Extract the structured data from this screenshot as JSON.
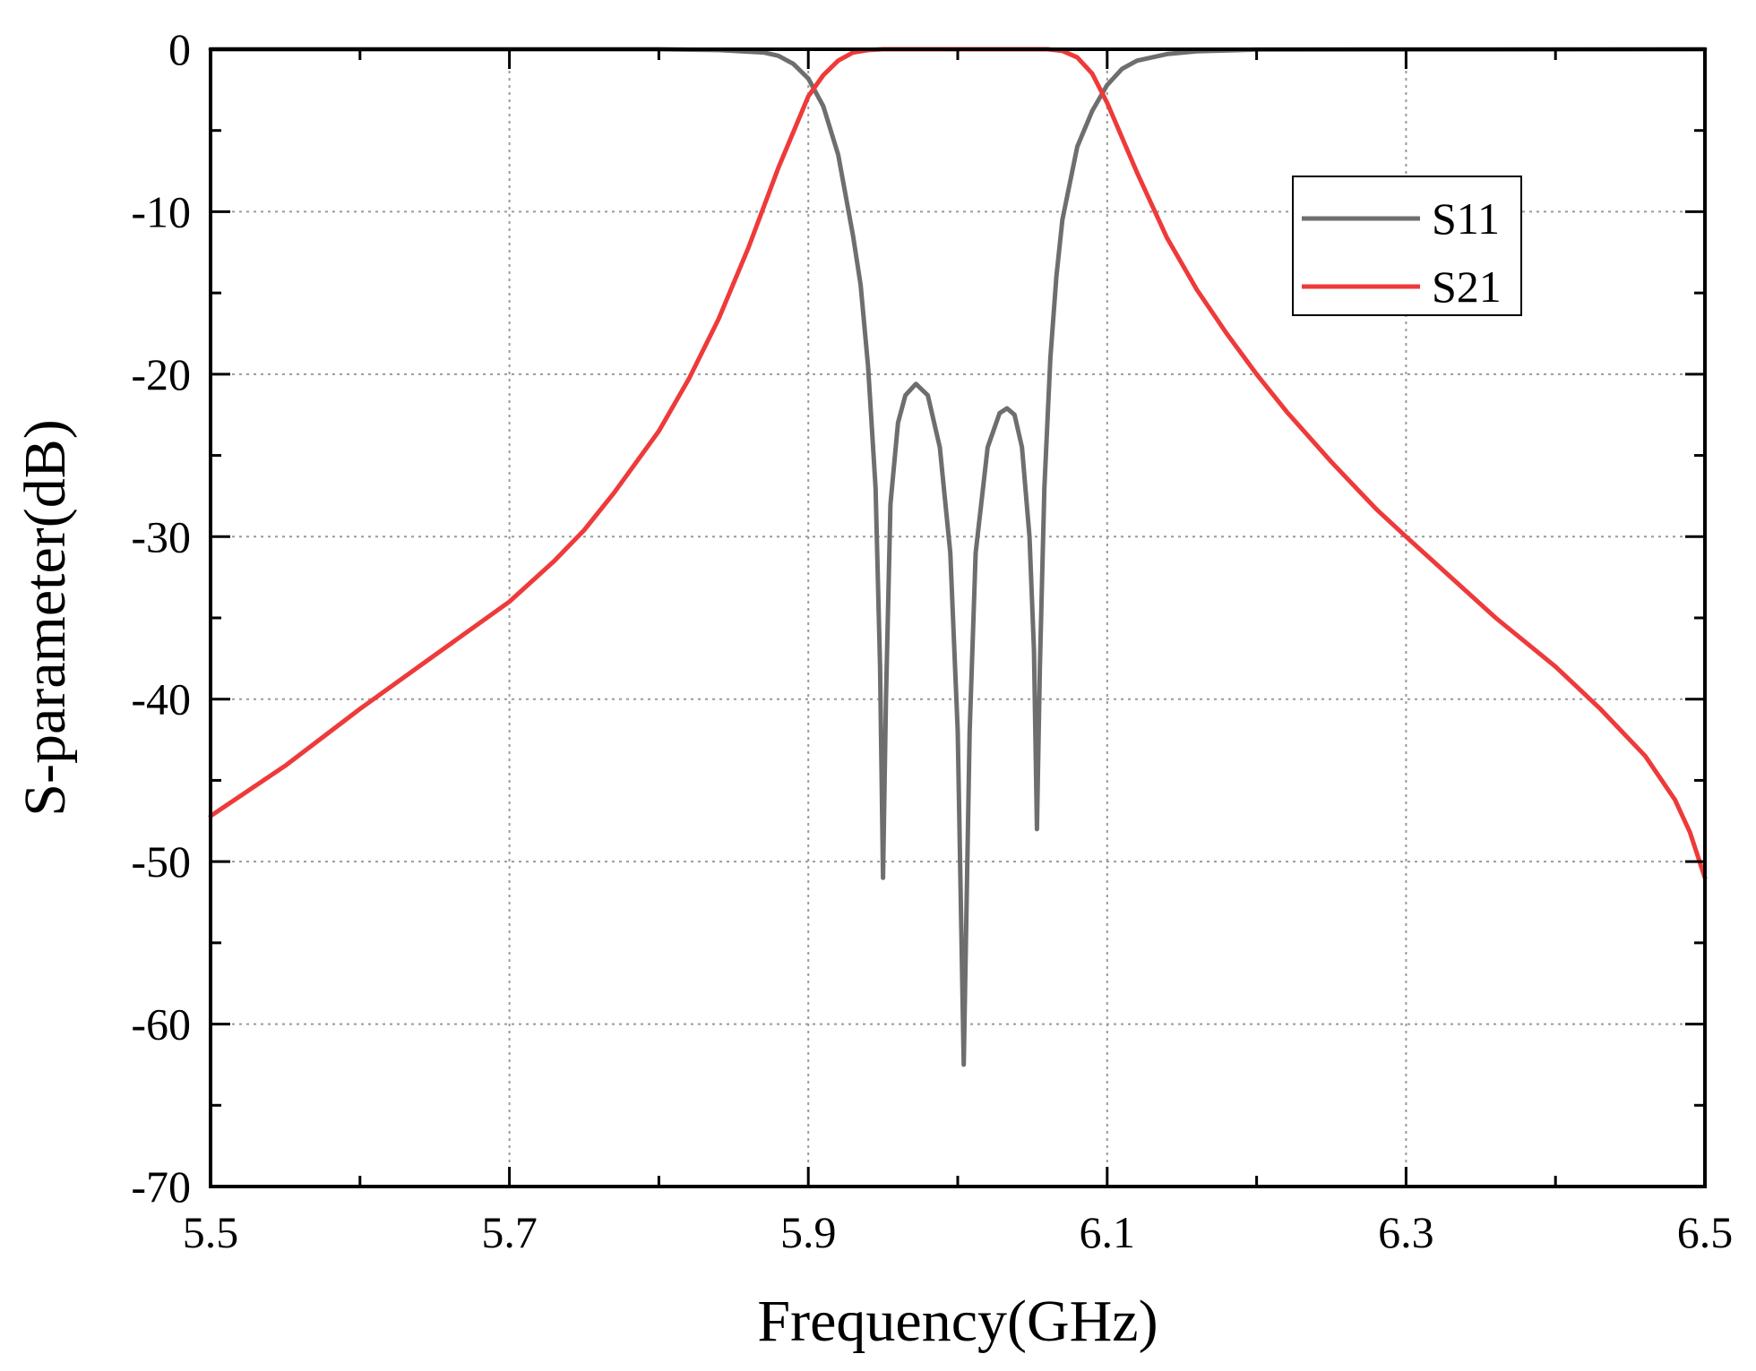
{
  "chart_data": {
    "type": "line",
    "title": "",
    "xlabel": "Frequency(GHz)",
    "ylabel": "S-parameter(dB)",
    "xlim": [
      5.5,
      6.5
    ],
    "ylim": [
      -70,
      0
    ],
    "x_ticks": [
      5.5,
      5.7,
      5.9,
      6.1,
      6.3,
      6.5
    ],
    "x_tick_labels": [
      "5.5",
      "5.7",
      "5.9",
      "6.1",
      "6.3",
      "6.5"
    ],
    "y_ticks": [
      0,
      -10,
      -20,
      -30,
      -40,
      -50,
      -60,
      -70
    ],
    "y_tick_labels": [
      "0",
      "-10",
      "-20",
      "-30",
      "-40",
      "-50",
      "-60",
      "-70"
    ],
    "grid": true,
    "legend_position": "top-right",
    "series": [
      {
        "name": "S11",
        "color": "#6e6e6e",
        "points": [
          [
            5.5,
            0
          ],
          [
            5.8,
            0
          ],
          [
            5.84,
            -0.05
          ],
          [
            5.87,
            -0.2
          ],
          [
            5.88,
            -0.4
          ],
          [
            5.89,
            -0.9
          ],
          [
            5.9,
            -1.8
          ],
          [
            5.91,
            -3.5
          ],
          [
            5.92,
            -6.5
          ],
          [
            5.93,
            -11.5
          ],
          [
            5.935,
            -14.5
          ],
          [
            5.94,
            -19.5
          ],
          [
            5.945,
            -27
          ],
          [
            5.948,
            -38
          ],
          [
            5.95,
            -51
          ],
          [
            5.952,
            -40
          ],
          [
            5.955,
            -28
          ],
          [
            5.96,
            -23
          ],
          [
            5.965,
            -21.3
          ],
          [
            5.972,
            -20.6
          ],
          [
            5.98,
            -21.3
          ],
          [
            5.988,
            -24.5
          ],
          [
            5.995,
            -31
          ],
          [
            6.0,
            -42
          ],
          [
            6.004,
            -62.5
          ],
          [
            6.008,
            -42
          ],
          [
            6.012,
            -31
          ],
          [
            6.02,
            -24.5
          ],
          [
            6.028,
            -22.4
          ],
          [
            6.033,
            -22.1
          ],
          [
            6.038,
            -22.5
          ],
          [
            6.043,
            -24.5
          ],
          [
            6.048,
            -30
          ],
          [
            6.051,
            -37
          ],
          [
            6.053,
            -48
          ],
          [
            6.055,
            -38
          ],
          [
            6.058,
            -27
          ],
          [
            6.062,
            -19
          ],
          [
            6.066,
            -14
          ],
          [
            6.07,
            -10.5
          ],
          [
            6.08,
            -6
          ],
          [
            6.09,
            -3.8
          ],
          [
            6.1,
            -2.2
          ],
          [
            6.11,
            -1.2
          ],
          [
            6.12,
            -0.7
          ],
          [
            6.14,
            -0.3
          ],
          [
            6.16,
            -0.12
          ],
          [
            6.2,
            -0.02
          ],
          [
            6.5,
            0
          ]
        ]
      },
      {
        "name": "S21",
        "color": "#ee3a3a",
        "points": [
          [
            5.5,
            -47.2
          ],
          [
            5.55,
            -44.1
          ],
          [
            5.6,
            -40.6
          ],
          [
            5.65,
            -37.3
          ],
          [
            5.7,
            -34
          ],
          [
            5.73,
            -31.5
          ],
          [
            5.75,
            -29.6
          ],
          [
            5.77,
            -27.3
          ],
          [
            5.8,
            -23.5
          ],
          [
            5.82,
            -20.3
          ],
          [
            5.84,
            -16.6
          ],
          [
            5.86,
            -12.2
          ],
          [
            5.88,
            -7.3
          ],
          [
            5.9,
            -2.9
          ],
          [
            5.91,
            -1.6
          ],
          [
            5.92,
            -0.7
          ],
          [
            5.93,
            -0.2
          ],
          [
            5.94,
            -0.05
          ],
          [
            5.95,
            0
          ],
          [
            6.06,
            0
          ],
          [
            6.07,
            -0.1
          ],
          [
            6.08,
            -0.5
          ],
          [
            6.09,
            -1.5
          ],
          [
            6.1,
            -3.3
          ],
          [
            6.12,
            -7.6
          ],
          [
            6.14,
            -11.6
          ],
          [
            6.16,
            -14.8
          ],
          [
            6.18,
            -17.5
          ],
          [
            6.2,
            -20
          ],
          [
            6.22,
            -22.3
          ],
          [
            6.25,
            -25.4
          ],
          [
            6.28,
            -28.3
          ],
          [
            6.3,
            -30
          ],
          [
            6.33,
            -32.5
          ],
          [
            6.36,
            -35
          ],
          [
            6.4,
            -38
          ],
          [
            6.43,
            -40.6
          ],
          [
            6.46,
            -43.5
          ],
          [
            6.48,
            -46.2
          ],
          [
            6.49,
            -48.2
          ],
          [
            6.5,
            -51
          ]
        ]
      }
    ]
  }
}
